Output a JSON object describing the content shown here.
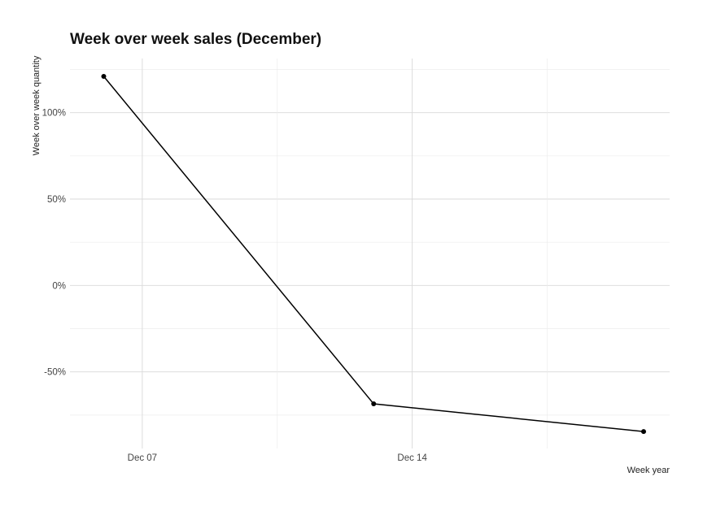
{
  "chart_data": {
    "type": "line",
    "title": "Week over week sales (December)",
    "xlabel": "Week year",
    "ylabel": "Week over week quantity",
    "x": [
      "2019-12-06",
      "2019-12-13",
      "2019-12-20"
    ],
    "x_tick_labels": [
      "Dec 07",
      "Dec 14"
    ],
    "x_tick_values": [
      "2019-12-07",
      "2019-12-14"
    ],
    "xlim": [
      "2019-12-05",
      "2019-12-20"
    ],
    "series": [
      {
        "values": [
          121,
          -68.5,
          -84.5
        ]
      }
    ],
    "y_tick_labels": [
      "-50%",
      "0%",
      "50%",
      "100%"
    ],
    "y_tick_values": [
      -50,
      0,
      50,
      100
    ],
    "ylim": [
      -90,
      127
    ],
    "y_unit": "percent",
    "grid": true,
    "legend": "none"
  }
}
